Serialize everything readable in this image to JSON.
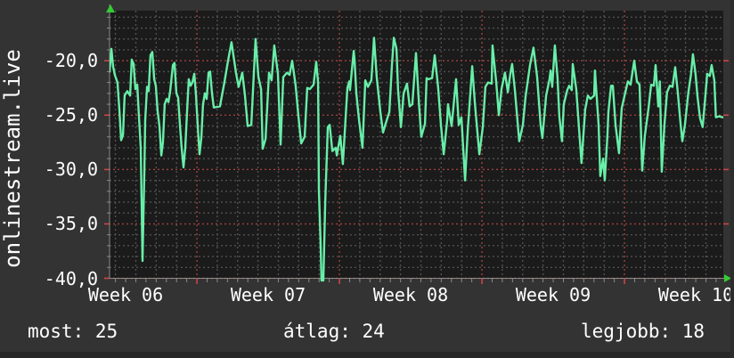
{
  "graph": {
    "vertical_label": "onlinestream.live",
    "stats": {
      "current_text": "most: 25",
      "average_text": "átlag: 24",
      "best_text": "legjobb: 18"
    }
  },
  "colors": {
    "background": "#333333",
    "plot_background": "#1b1b1b",
    "text": "#ffffff",
    "line": "#68eea8",
    "grid_minor": "#505050",
    "grid_major": "#a04040",
    "axis": "#8a8a8a",
    "tick_major": "#cc4444",
    "arrow": "#33cc33"
  },
  "chart_data": {
    "type": "line",
    "title": "",
    "ylabel": "onlinestream.live",
    "grid": true,
    "legend_position": "none",
    "y_axis": {
      "min": -40,
      "top": -15.4,
      "major_step": 5,
      "minor_step": 1,
      "ticks": [
        {
          "value": -20,
          "label": "-20,0"
        },
        {
          "value": -25,
          "label": "-25,0"
        },
        {
          "value": -30,
          "label": "-30,0"
        },
        {
          "value": -35,
          "label": "-35,0"
        },
        {
          "value": -40,
          "label": "-40,0"
        }
      ]
    },
    "x_axis": {
      "unit": "days",
      "range_days": 30.14,
      "week_start_day": 4.29,
      "day_minor_grid": 1,
      "tick_step_days": 0.5,
      "labels": [
        {
          "day": 0.79,
          "label": "Week 06"
        },
        {
          "day": 7.79,
          "label": "Week 07"
        },
        {
          "day": 14.79,
          "label": "Week 08"
        },
        {
          "day": 21.79,
          "label": "Week 09"
        },
        {
          "day": 28.79,
          "label": "Week 10"
        }
      ]
    },
    "stats": {
      "most": 25,
      "atlag": 24,
      "legjobb": 18
    },
    "series": [
      {
        "name": "onlinestream.live",
        "color": "#68eea8",
        "points": [
          [
            0,
            -21
          ],
          [
            0.09,
            -18.9
          ],
          [
            0.17,
            -20.5
          ],
          [
            0.26,
            -21.3
          ],
          [
            0.39,
            -22
          ],
          [
            0.48,
            -24.5
          ],
          [
            0.57,
            -27.3
          ],
          [
            0.66,
            -26.8
          ],
          [
            0.74,
            -23.2
          ],
          [
            0.87,
            -22.8
          ],
          [
            1.01,
            -23.2
          ],
          [
            1.09,
            -19.9
          ],
          [
            1.18,
            -20.3
          ],
          [
            1.27,
            -22.6
          ],
          [
            1.36,
            -22.2
          ],
          [
            1.44,
            -25
          ],
          [
            1.53,
            -28
          ],
          [
            1.62,
            -38.4
          ],
          [
            1.71,
            -30
          ],
          [
            1.75,
            -25.5
          ],
          [
            1.84,
            -22.4
          ],
          [
            1.92,
            -22.8
          ],
          [
            2.01,
            -19.5
          ],
          [
            2.1,
            -19.2
          ],
          [
            2.19,
            -21.7
          ],
          [
            2.27,
            -22.3
          ],
          [
            2.36,
            -24.6
          ],
          [
            2.45,
            -26
          ],
          [
            2.54,
            -28.7
          ],
          [
            2.62,
            -27.5
          ],
          [
            2.71,
            -24
          ],
          [
            2.8,
            -23.5
          ],
          [
            2.89,
            -23.8
          ],
          [
            2.97,
            -22.9
          ],
          [
            3.11,
            -20.4
          ],
          [
            3.19,
            -20.2
          ],
          [
            3.28,
            -23
          ],
          [
            3.37,
            -23.4
          ],
          [
            3.46,
            -26
          ],
          [
            3.54,
            -28
          ],
          [
            3.63,
            -29.8
          ],
          [
            3.72,
            -28
          ],
          [
            3.81,
            -24.5
          ],
          [
            3.89,
            -21.7
          ],
          [
            3.98,
            -22.3
          ],
          [
            4.07,
            -22
          ],
          [
            4.16,
            -21.2
          ],
          [
            4.24,
            -23
          ],
          [
            4.33,
            -26
          ],
          [
            4.42,
            -28.6
          ],
          [
            4.51,
            -27
          ],
          [
            4.59,
            -24
          ],
          [
            4.68,
            -23
          ],
          [
            4.77,
            -23.5
          ],
          [
            4.86,
            -21.1
          ],
          [
            4.94,
            -21
          ],
          [
            5.03,
            -23
          ],
          [
            5.12,
            -24.3
          ],
          [
            5.42,
            -24.2
          ],
          [
            5.64,
            -22
          ],
          [
            5.82,
            -20
          ],
          [
            5.99,
            -18.3
          ],
          [
            6.21,
            -21.1
          ],
          [
            6.34,
            -22.4
          ],
          [
            6.52,
            -21.1
          ],
          [
            6.65,
            -23.2
          ],
          [
            6.78,
            -26
          ],
          [
            6.96,
            -25.9
          ],
          [
            7.17,
            -18
          ],
          [
            7.31,
            -21.5
          ],
          [
            7.44,
            -22.6
          ],
          [
            7.52,
            -28.1
          ],
          [
            7.66,
            -27.2
          ],
          [
            7.83,
            -21.1
          ],
          [
            7.96,
            -21.8
          ],
          [
            8.09,
            -18.6
          ],
          [
            8.27,
            -21.2
          ],
          [
            8.4,
            -27.7
          ],
          [
            8.53,
            -21.5
          ],
          [
            8.71,
            -21.1
          ],
          [
            8.84,
            -21.3
          ],
          [
            8.97,
            -20
          ],
          [
            9.14,
            -22.3
          ],
          [
            9.27,
            -25
          ],
          [
            9.41,
            -27.6
          ],
          [
            9.58,
            -27
          ],
          [
            9.71,
            -22.5
          ],
          [
            9.84,
            -22.6
          ],
          [
            10.02,
            -22.2
          ],
          [
            10.15,
            -20.1
          ],
          [
            10.24,
            -22
          ],
          [
            10.28,
            -31.9
          ],
          [
            10.37,
            -37
          ],
          [
            10.41,
            -40.2
          ],
          [
            10.5,
            -40.2
          ],
          [
            10.59,
            -33
          ],
          [
            10.72,
            -26.1
          ],
          [
            10.81,
            -25.9
          ],
          [
            10.94,
            -28.3
          ],
          [
            11.11,
            -28
          ],
          [
            11.16,
            -28.7
          ],
          [
            11.33,
            -26.9
          ],
          [
            11.46,
            -29.5
          ],
          [
            11.68,
            -22.5
          ],
          [
            11.77,
            -21.9
          ],
          [
            11.81,
            -22.7
          ],
          [
            11.99,
            -19.1
          ],
          [
            12.03,
            -19.9
          ],
          [
            12.12,
            -23
          ],
          [
            12.25,
            -25.4
          ],
          [
            12.42,
            -28
          ],
          [
            12.56,
            -21.8
          ],
          [
            12.69,
            -22.4
          ],
          [
            12.86,
            -21.8
          ],
          [
            12.99,
            -17.9
          ],
          [
            13.12,
            -21.5
          ],
          [
            13.3,
            -24.7
          ],
          [
            13.43,
            -26.6
          ],
          [
            13.56,
            -25.8
          ],
          [
            13.74,
            -24.7
          ],
          [
            13.87,
            -20.4
          ],
          [
            13.96,
            -17.9
          ],
          [
            14.09,
            -18.9
          ],
          [
            14.17,
            -22.7
          ],
          [
            14.31,
            -26.1
          ],
          [
            14.44,
            -23
          ],
          [
            14.61,
            -22.1
          ],
          [
            14.74,
            -24.2
          ],
          [
            14.87,
            -24
          ],
          [
            15.05,
            -19.3
          ],
          [
            15.18,
            -23.5
          ],
          [
            15.31,
            -27
          ],
          [
            15.49,
            -25.8
          ],
          [
            15.57,
            -21.6
          ],
          [
            15.66,
            -21.7
          ],
          [
            15.84,
            -21.6
          ],
          [
            15.97,
            -19.5
          ],
          [
            16.14,
            -22.5
          ],
          [
            16.27,
            -25.8
          ],
          [
            16.41,
            -28.6
          ],
          [
            16.58,
            -25.5
          ],
          [
            16.62,
            -24
          ],
          [
            16.8,
            -26
          ],
          [
            17.02,
            -21.7
          ],
          [
            17.15,
            -25.9
          ],
          [
            17.28,
            -25.2
          ],
          [
            17.46,
            -31
          ],
          [
            17.59,
            -26.4
          ],
          [
            17.81,
            -20.5
          ],
          [
            17.94,
            -23.9
          ],
          [
            18.16,
            -28.6
          ],
          [
            18.33,
            -26.1
          ],
          [
            18.46,
            -22.4
          ],
          [
            18.59,
            -22
          ],
          [
            18.77,
            -22.1
          ],
          [
            18.81,
            -18.6
          ],
          [
            18.99,
            -22
          ],
          [
            19.12,
            -25
          ],
          [
            19.25,
            -22.6
          ],
          [
            19.42,
            -21.1
          ],
          [
            19.56,
            -22.9
          ],
          [
            19.69,
            -21.1
          ],
          [
            19.77,
            -20.3
          ],
          [
            19.9,
            -22.6
          ],
          [
            20.12,
            -27.4
          ],
          [
            20.3,
            -25.9
          ],
          [
            20.43,
            -23.3
          ],
          [
            20.65,
            -20.4
          ],
          [
            20.82,
            -18.8
          ],
          [
            21,
            -21.5
          ],
          [
            21.17,
            -25.9
          ],
          [
            21.26,
            -27.1
          ],
          [
            21.44,
            -23.2
          ],
          [
            21.61,
            -21.7
          ],
          [
            21.66,
            -20.9
          ],
          [
            21.74,
            -22.4
          ],
          [
            21.87,
            -18.6
          ],
          [
            22,
            -21.6
          ],
          [
            22.09,
            -25.1
          ],
          [
            22.22,
            -27.4
          ],
          [
            22.31,
            -24
          ],
          [
            22.48,
            -22.7
          ],
          [
            22.57,
            -22.3
          ],
          [
            22.7,
            -22.7
          ],
          [
            22.75,
            -20.3
          ],
          [
            22.92,
            -22.6
          ],
          [
            23.05,
            -26.1
          ],
          [
            23.18,
            -29.4
          ],
          [
            23.36,
            -24.5
          ],
          [
            23.49,
            -23.2
          ],
          [
            23.62,
            -23.5
          ],
          [
            23.8,
            -23.2
          ],
          [
            23.84,
            -20.9
          ],
          [
            24.02,
            -25.9
          ],
          [
            24.1,
            -30.6
          ],
          [
            24.24,
            -29
          ],
          [
            24.32,
            -31
          ],
          [
            24.45,
            -26.9
          ],
          [
            24.5,
            -24.7
          ],
          [
            24.63,
            -22.3
          ],
          [
            24.72,
            -22.3
          ],
          [
            24.85,
            -25.9
          ],
          [
            25.02,
            -28.5
          ],
          [
            25.15,
            -24.4
          ],
          [
            25.33,
            -22.9
          ],
          [
            25.46,
            -21.9
          ],
          [
            25.59,
            -22.2
          ],
          [
            25.77,
            -20
          ],
          [
            25.9,
            -21.9
          ],
          [
            26.03,
            -22.2
          ],
          [
            26.16,
            -30.1
          ],
          [
            26.29,
            -26.9
          ],
          [
            26.47,
            -24.4
          ],
          [
            26.6,
            -22.2
          ],
          [
            26.73,
            -22.3
          ],
          [
            26.82,
            -20.4
          ],
          [
            26.95,
            -24.2
          ],
          [
            27.03,
            -21.9
          ],
          [
            27.12,
            -30.2
          ],
          [
            27.25,
            -25.9
          ],
          [
            27.38,
            -22.9
          ],
          [
            27.52,
            -22.3
          ],
          [
            27.65,
            -22.4
          ],
          [
            27.78,
            -20.6
          ],
          [
            27.91,
            -22.9
          ],
          [
            28.04,
            -25.7
          ],
          [
            28.13,
            -27.4
          ],
          [
            28.26,
            -25.9
          ],
          [
            28.43,
            -22.9
          ],
          [
            28.56,
            -21.2
          ],
          [
            28.65,
            -19.4
          ],
          [
            28.78,
            -21.2
          ],
          [
            28.87,
            -23.2
          ],
          [
            29,
            -25.3
          ],
          [
            29.13,
            -26.1
          ],
          [
            29.26,
            -23.3
          ],
          [
            29.35,
            -21.2
          ],
          [
            29.48,
            -21.4
          ],
          [
            29.57,
            -20.4
          ],
          [
            29.7,
            -21.8
          ],
          [
            29.78,
            -25.2
          ],
          [
            29.96,
            -25.1
          ],
          [
            30.09,
            -25.2
          ],
          [
            30.14,
            -25.2
          ]
        ]
      }
    ]
  }
}
